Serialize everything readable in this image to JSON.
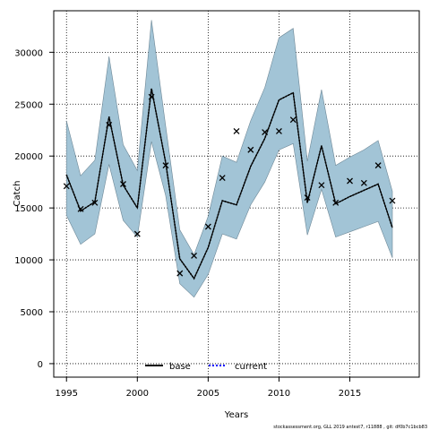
{
  "chart_data": {
    "type": "line",
    "xlabel": "Years",
    "ylabel": "Catch",
    "xlim": [
      1994.1,
      2019.9
    ],
    "ylim": [
      -1300,
      34000
    ],
    "x_ticks": [
      1995,
      2000,
      2005,
      2010,
      2015
    ],
    "y_ticks": [
      0,
      5000,
      10000,
      15000,
      20000,
      25000,
      30000
    ],
    "grid": true,
    "legend_position": "bottom-center",
    "x": [
      1995,
      1996,
      1997,
      1998,
      1999,
      2000,
      2001,
      2002,
      2003,
      2004,
      2005,
      2006,
      2007,
      2008,
      2009,
      2010,
      2011,
      2012,
      2013,
      2014,
      2015,
      2016,
      2017,
      2018
    ],
    "band": {
      "color": "#a2c4d6",
      "upper": [
        23400,
        18100,
        19600,
        29600,
        21100,
        18600,
        33100,
        22900,
        12900,
        10500,
        14200,
        20000,
        19400,
        23400,
        26600,
        31400,
        32300,
        19500,
        26400,
        19100,
        19900,
        20600,
        21500,
        16600
      ],
      "lower": [
        14300,
        11500,
        12500,
        19200,
        13800,
        12200,
        21400,
        16200,
        7700,
        6400,
        8600,
        12500,
        12000,
        15300,
        17500,
        20600,
        21200,
        12400,
        16800,
        12200,
        12700,
        13200,
        13700,
        10200
      ]
    },
    "series": [
      {
        "name": "base",
        "style": "solid",
        "color": "#000000",
        "values": [
          18200,
          14700,
          15600,
          23800,
          17200,
          15000,
          26500,
          19400,
          10100,
          8200,
          11200,
          15700,
          15300,
          19000,
          21700,
          25400,
          26100,
          15500,
          21000,
          15400,
          16100,
          16700,
          17300,
          13100
        ]
      },
      {
        "name": "current",
        "style": "dotted",
        "color": "#0000ff",
        "values": [
          18200,
          14700,
          15600,
          23800,
          17200,
          15000,
          26500,
          19400,
          10100,
          8200,
          11200,
          15700,
          15300,
          19000,
          21700,
          25400,
          26100,
          15500,
          21000,
          15400,
          16100,
          16700,
          17300,
          13100
        ]
      }
    ],
    "observed": {
      "marker": "x",
      "values": [
        17100,
        14900,
        15500,
        23000,
        17300,
        12500,
        25700,
        19100,
        8700,
        10400,
        13200,
        17900,
        22400,
        20600,
        22300,
        22400,
        23500,
        16000,
        17200,
        15500,
        17600,
        17400,
        19100,
        15700
      ]
    }
  },
  "footer": {
    "text": "stockassessment.org, GLL 2019 antest7, r11888 , git: df0b7c1bcb83"
  }
}
